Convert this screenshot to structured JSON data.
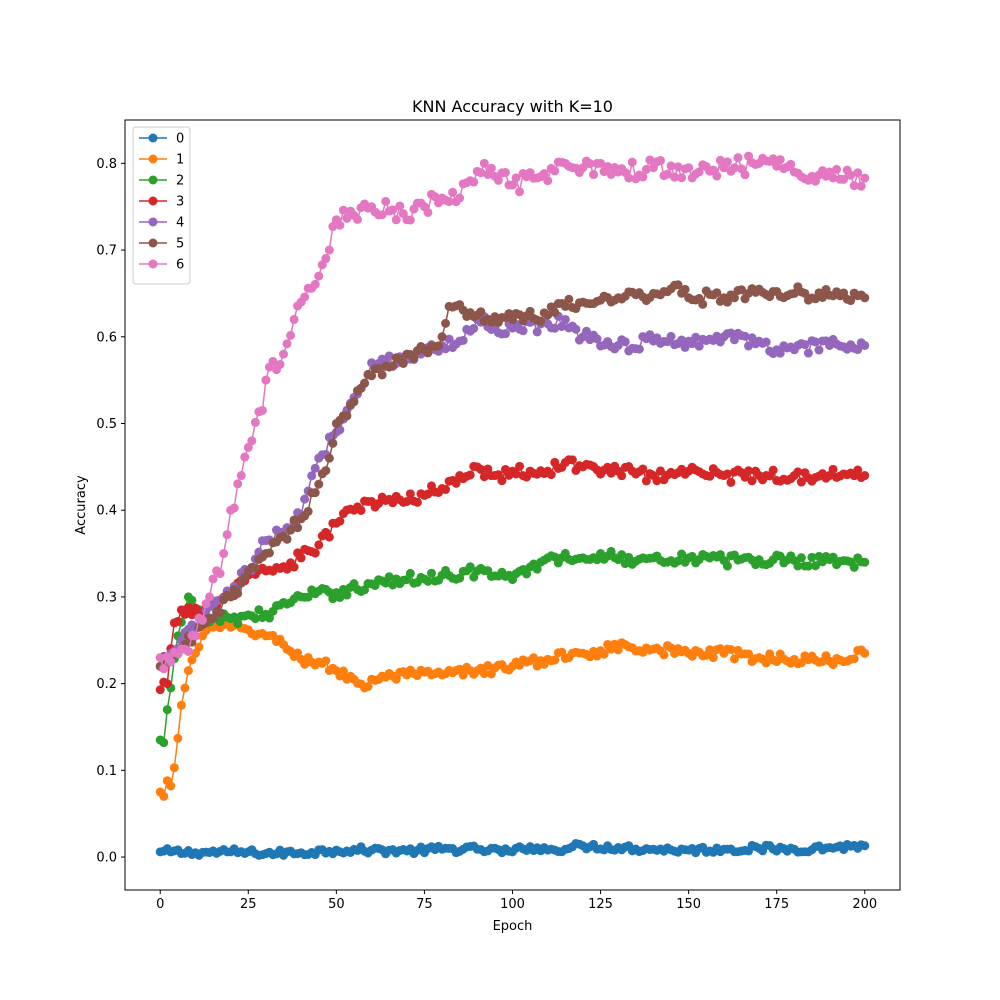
{
  "chart_data": {
    "type": "line",
    "title": "KNN Accuracy with K=10",
    "xlabel": "Epoch",
    "ylabel": "Accuracy",
    "xlim": [
      -10,
      210
    ],
    "ylim": [
      -0.038,
      0.85
    ],
    "xticks": [
      0,
      25,
      50,
      75,
      100,
      125,
      150,
      175,
      200
    ],
    "yticks": [
      0.0,
      0.1,
      0.2,
      0.3,
      0.4,
      0.5,
      0.6,
      0.7,
      0.8
    ],
    "ytick_labels": [
      "0.0",
      "0.1",
      "0.2",
      "0.3",
      "0.4",
      "0.5",
      "0.6",
      "0.7",
      "0.8"
    ],
    "grid": false,
    "legend_position": "top-left",
    "marker": "circle",
    "series": [
      {
        "name": "0",
        "color": "#1f77b4",
        "anchors": [
          [
            0,
            0.006
          ],
          [
            10,
            0.005
          ],
          [
            20,
            0.006
          ],
          [
            30,
            0.004
          ],
          [
            40,
            0.005
          ],
          [
            50,
            0.008
          ],
          [
            60,
            0.008
          ],
          [
            70,
            0.007
          ],
          [
            80,
            0.009
          ],
          [
            90,
            0.009
          ],
          [
            100,
            0.006
          ],
          [
            105,
            0.012
          ],
          [
            110,
            0.008
          ],
          [
            120,
            0.013
          ],
          [
            130,
            0.011
          ],
          [
            140,
            0.009
          ],
          [
            150,
            0.008
          ],
          [
            160,
            0.009
          ],
          [
            170,
            0.01
          ],
          [
            180,
            0.009
          ],
          [
            190,
            0.011
          ],
          [
            200,
            0.013
          ]
        ],
        "noise": 0.004
      },
      {
        "name": "1",
        "color": "#ff7f0e",
        "anchors": [
          [
            0,
            0.075
          ],
          [
            1,
            0.07
          ],
          [
            2,
            0.088
          ],
          [
            3,
            0.082
          ],
          [
            4,
            0.103
          ],
          [
            5,
            0.137
          ],
          [
            6,
            0.175
          ],
          [
            7,
            0.195
          ],
          [
            8,
            0.215
          ],
          [
            10,
            0.235
          ],
          [
            12,
            0.255
          ],
          [
            15,
            0.265
          ],
          [
            20,
            0.265
          ],
          [
            25,
            0.262
          ],
          [
            30,
            0.255
          ],
          [
            35,
            0.245
          ],
          [
            40,
            0.228
          ],
          [
            45,
            0.225
          ],
          [
            50,
            0.215
          ],
          [
            55,
            0.205
          ],
          [
            58,
            0.195
          ],
          [
            60,
            0.205
          ],
          [
            70,
            0.21
          ],
          [
            80,
            0.21
          ],
          [
            90,
            0.215
          ],
          [
            100,
            0.22
          ],
          [
            110,
            0.228
          ],
          [
            120,
            0.235
          ],
          [
            125,
            0.238
          ],
          [
            132,
            0.245
          ],
          [
            140,
            0.24
          ],
          [
            150,
            0.235
          ],
          [
            160,
            0.235
          ],
          [
            170,
            0.23
          ],
          [
            180,
            0.228
          ],
          [
            190,
            0.226
          ],
          [
            200,
            0.235
          ]
        ],
        "noise": 0.006
      },
      {
        "name": "2",
        "color": "#2ca02c",
        "anchors": [
          [
            0,
            0.135
          ],
          [
            1,
            0.132
          ],
          [
            2,
            0.17
          ],
          [
            3,
            0.195
          ],
          [
            5,
            0.255
          ],
          [
            7,
            0.285
          ],
          [
            8,
            0.3
          ],
          [
            10,
            0.28
          ],
          [
            15,
            0.275
          ],
          [
            20,
            0.275
          ],
          [
            30,
            0.28
          ],
          [
            40,
            0.3
          ],
          [
            50,
            0.305
          ],
          [
            60,
            0.315
          ],
          [
            70,
            0.32
          ],
          [
            80,
            0.325
          ],
          [
            90,
            0.33
          ],
          [
            100,
            0.32
          ],
          [
            110,
            0.345
          ],
          [
            120,
            0.345
          ],
          [
            125,
            0.35
          ],
          [
            130,
            0.343
          ],
          [
            140,
            0.345
          ],
          [
            150,
            0.345
          ],
          [
            160,
            0.342
          ],
          [
            170,
            0.343
          ],
          [
            180,
            0.342
          ],
          [
            190,
            0.343
          ],
          [
            200,
            0.34
          ]
        ],
        "noise": 0.007
      },
      {
        "name": "3",
        "color": "#d62728",
        "anchors": [
          [
            0,
            0.193
          ],
          [
            2,
            0.2
          ],
          [
            4,
            0.27
          ],
          [
            6,
            0.285
          ],
          [
            8,
            0.288
          ],
          [
            12,
            0.28
          ],
          [
            16,
            0.29
          ],
          [
            20,
            0.305
          ],
          [
            25,
            0.325
          ],
          [
            30,
            0.33
          ],
          [
            35,
            0.335
          ],
          [
            40,
            0.345
          ],
          [
            45,
            0.36
          ],
          [
            50,
            0.385
          ],
          [
            55,
            0.4
          ],
          [
            60,
            0.41
          ],
          [
            70,
            0.41
          ],
          [
            80,
            0.425
          ],
          [
            85,
            0.44
          ],
          [
            90,
            0.45
          ],
          [
            95,
            0.44
          ],
          [
            100,
            0.445
          ],
          [
            110,
            0.445
          ],
          [
            115,
            0.455
          ],
          [
            120,
            0.45
          ],
          [
            130,
            0.445
          ],
          [
            140,
            0.44
          ],
          [
            150,
            0.445
          ],
          [
            160,
            0.44
          ],
          [
            170,
            0.44
          ],
          [
            180,
            0.44
          ],
          [
            190,
            0.44
          ],
          [
            200,
            0.44
          ]
        ],
        "noise": 0.008
      },
      {
        "name": "4",
        "color": "#9467bd",
        "anchors": [
          [
            0,
            0.22
          ],
          [
            3,
            0.235
          ],
          [
            6,
            0.25
          ],
          [
            10,
            0.265
          ],
          [
            15,
            0.29
          ],
          [
            20,
            0.305
          ],
          [
            25,
            0.33
          ],
          [
            30,
            0.365
          ],
          [
            35,
            0.375
          ],
          [
            40,
            0.395
          ],
          [
            45,
            0.46
          ],
          [
            50,
            0.49
          ],
          [
            55,
            0.53
          ],
          [
            60,
            0.57
          ],
          [
            70,
            0.575
          ],
          [
            80,
            0.59
          ],
          [
            85,
            0.595
          ],
          [
            90,
            0.62
          ],
          [
            95,
            0.61
          ],
          [
            100,
            0.61
          ],
          [
            110,
            0.615
          ],
          [
            115,
            0.62
          ],
          [
            120,
            0.6
          ],
          [
            130,
            0.59
          ],
          [
            140,
            0.595
          ],
          [
            150,
            0.595
          ],
          [
            160,
            0.6
          ],
          [
            170,
            0.595
          ],
          [
            175,
            0.585
          ],
          [
            180,
            0.585
          ],
          [
            190,
            0.59
          ],
          [
            200,
            0.59
          ]
        ],
        "noise": 0.008
      },
      {
        "name": "5",
        "color": "#8c564b",
        "anchors": [
          [
            0,
            0.22
          ],
          [
            3,
            0.23
          ],
          [
            6,
            0.24
          ],
          [
            10,
            0.255
          ],
          [
            15,
            0.275
          ],
          [
            20,
            0.3
          ],
          [
            25,
            0.33
          ],
          [
            30,
            0.35
          ],
          [
            35,
            0.37
          ],
          [
            40,
            0.39
          ],
          [
            45,
            0.43
          ],
          [
            48,
            0.46
          ],
          [
            50,
            0.5
          ],
          [
            55,
            0.525
          ],
          [
            60,
            0.555
          ],
          [
            65,
            0.565
          ],
          [
            70,
            0.58
          ],
          [
            75,
            0.585
          ],
          [
            80,
            0.6
          ],
          [
            82,
            0.635
          ],
          [
            90,
            0.625
          ],
          [
            100,
            0.62
          ],
          [
            110,
            0.625
          ],
          [
            115,
            0.635
          ],
          [
            120,
            0.64
          ],
          [
            130,
            0.645
          ],
          [
            140,
            0.65
          ],
          [
            147,
            0.66
          ],
          [
            150,
            0.645
          ],
          [
            160,
            0.645
          ],
          [
            170,
            0.655
          ],
          [
            180,
            0.65
          ],
          [
            190,
            0.648
          ],
          [
            200,
            0.645
          ]
        ],
        "noise": 0.008
      },
      {
        "name": "6",
        "color": "#e377c2",
        "anchors": [
          [
            0,
            0.23
          ],
          [
            3,
            0.225
          ],
          [
            6,
            0.24
          ],
          [
            10,
            0.255
          ],
          [
            14,
            0.3
          ],
          [
            18,
            0.35
          ],
          [
            20,
            0.4
          ],
          [
            23,
            0.44
          ],
          [
            26,
            0.48
          ],
          [
            29,
            0.515
          ],
          [
            31,
            0.565
          ],
          [
            35,
            0.58
          ],
          [
            38,
            0.62
          ],
          [
            40,
            0.64
          ],
          [
            45,
            0.67
          ],
          [
            48,
            0.7
          ],
          [
            50,
            0.735
          ],
          [
            55,
            0.74
          ],
          [
            60,
            0.75
          ],
          [
            65,
            0.745
          ],
          [
            70,
            0.735
          ],
          [
            75,
            0.75
          ],
          [
            80,
            0.76
          ],
          [
            85,
            0.76
          ],
          [
            88,
            0.78
          ],
          [
            92,
            0.8
          ],
          [
            95,
            0.785
          ],
          [
            100,
            0.775
          ],
          [
            110,
            0.78
          ],
          [
            115,
            0.8
          ],
          [
            120,
            0.795
          ],
          [
            125,
            0.8
          ],
          [
            130,
            0.79
          ],
          [
            140,
            0.795
          ],
          [
            150,
            0.795
          ],
          [
            160,
            0.795
          ],
          [
            170,
            0.8
          ],
          [
            180,
            0.79
          ],
          [
            190,
            0.79
          ],
          [
            200,
            0.783
          ]
        ],
        "noise": 0.012
      }
    ]
  }
}
